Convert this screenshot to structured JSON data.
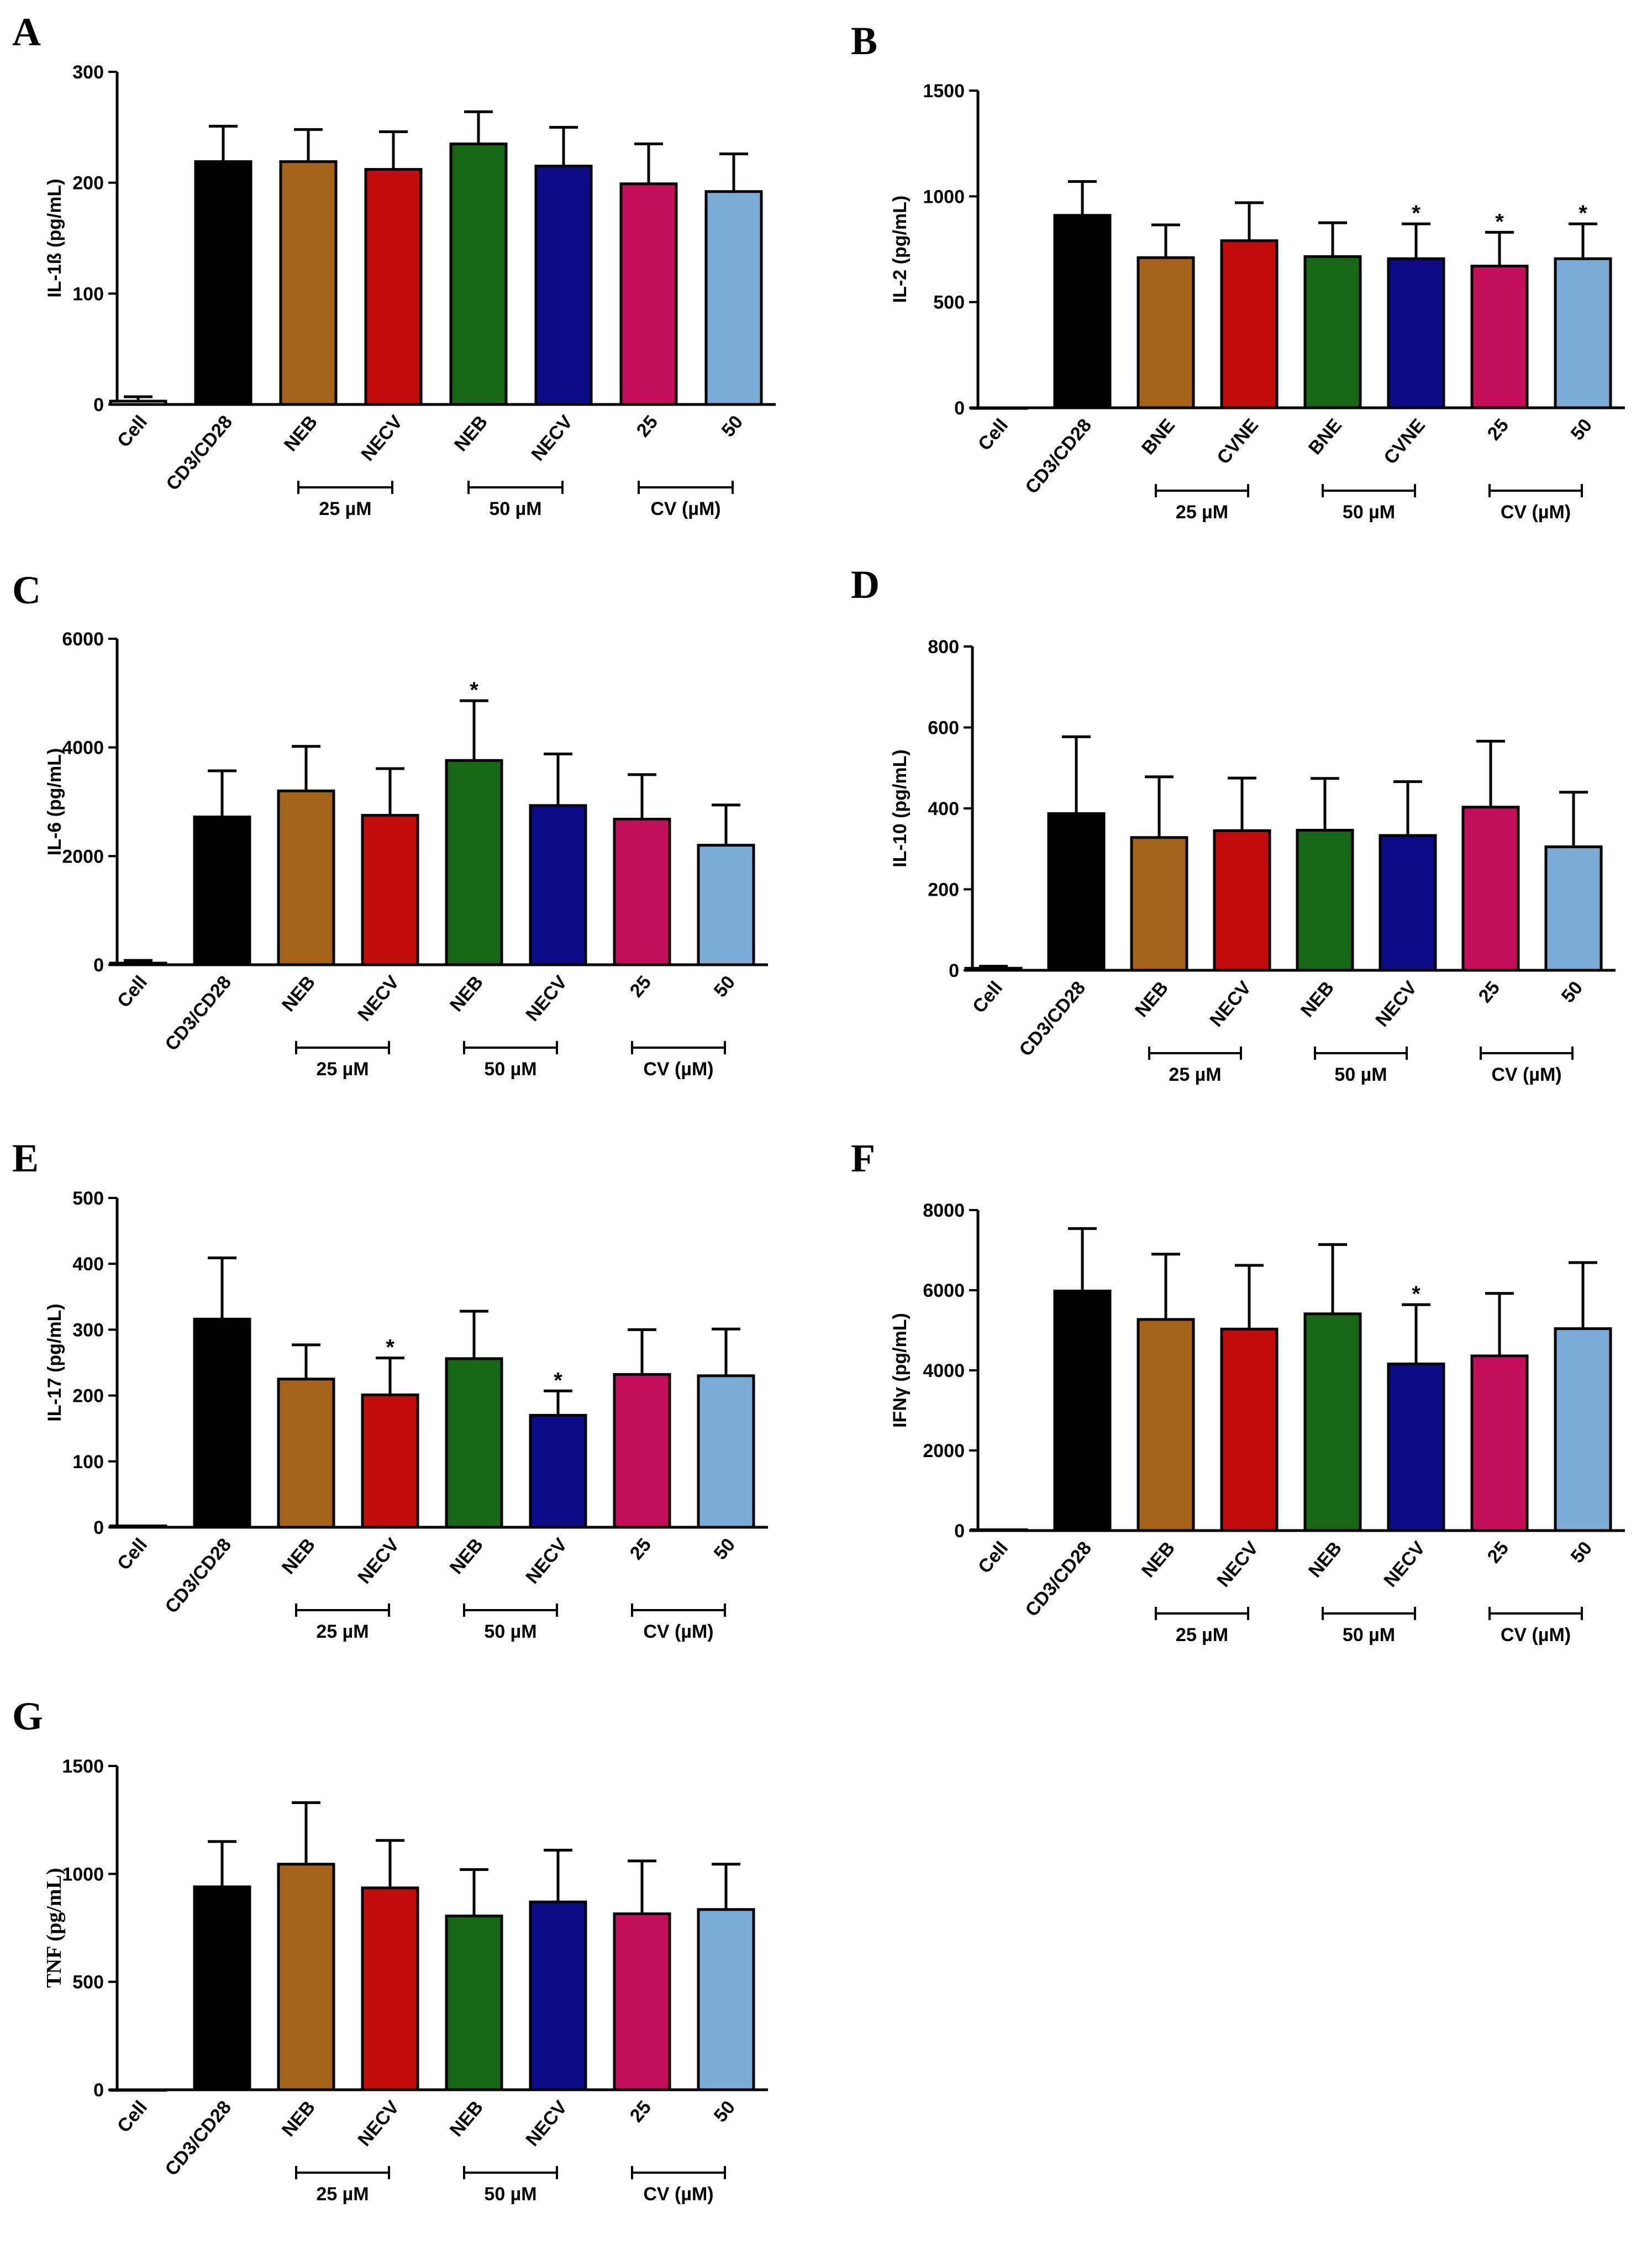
{
  "figure": {
    "colors": {
      "Cell": "#ffffff",
      "CD3/CD28": "#000000",
      "NEB25": "#a5631a",
      "NECV25": "#c20b0b",
      "NEB50": "#166616",
      "NECV50": "#0c0c88",
      "CV25": "#c4105a",
      "CV50": "#7bacd8"
    }
  },
  "chart_data": [
    {
      "panel": "A",
      "type": "bar",
      "ylabel": "IL-1ß (pg/mL)",
      "ylim": [
        0,
        300
      ],
      "yticks": [
        0,
        100,
        200,
        300
      ],
      "categories": [
        "Cell",
        "CD3/CD28",
        "NEB",
        "NECV",
        "NEB",
        "NECV",
        "25",
        "50"
      ],
      "values": [
        3,
        219,
        219,
        212,
        235,
        215,
        199,
        192
      ],
      "errors": [
        4,
        32,
        29,
        34,
        29,
        35,
        36,
        34
      ],
      "significance": [
        "",
        "",
        "",
        "",
        "",
        "",
        "",
        ""
      ],
      "groups": [
        "25 µM",
        "50 µM",
        "CV (µM)"
      ]
    },
    {
      "panel": "B",
      "type": "bar",
      "ylabel": "IL-2 (pg/mL)",
      "ylim": [
        0,
        1500
      ],
      "yticks": [
        0,
        500,
        1000,
        1500
      ],
      "categories": [
        "Cell",
        "CD3/CD28",
        "BNE",
        "CVNE",
        "BNE",
        "CVNE",
        "25",
        "50"
      ],
      "values": [
        0,
        910,
        710,
        790,
        715,
        705,
        670,
        705
      ],
      "errors": [
        0,
        160,
        155,
        180,
        160,
        165,
        160,
        165
      ],
      "significance": [
        "",
        "",
        "",
        "",
        "",
        "*",
        "*",
        "*"
      ],
      "groups": [
        "25 µM",
        "50 µM",
        "CV (µM)"
      ]
    },
    {
      "panel": "C",
      "type": "bar",
      "ylabel": "IL-6 (pg/mL)",
      "ylim": [
        0,
        6000
      ],
      "yticks": [
        0,
        2000,
        4000,
        6000
      ],
      "categories": [
        "Cell",
        "CD3/CD28",
        "NEB",
        "NECV",
        "NEB",
        "NECV",
        "25",
        "50"
      ],
      "values": [
        30,
        2720,
        3200,
        2750,
        3760,
        2930,
        2680,
        2200
      ],
      "errors": [
        50,
        850,
        820,
        860,
        1100,
        950,
        820,
        740
      ],
      "significance": [
        "",
        "",
        "",
        "",
        "*",
        "",
        "",
        ""
      ],
      "groups": [
        "25 µM",
        "50 µM",
        "CV (µM)"
      ]
    },
    {
      "panel": "D",
      "type": "bar",
      "ylabel": "IL-10 (pg/mL)",
      "ylim": [
        0,
        800
      ],
      "yticks": [
        0,
        200,
        400,
        600,
        800
      ],
      "categories": [
        "Cell",
        "CD3/CD28",
        "NEB",
        "NECV",
        "NEB",
        "NECV",
        "25",
        "50"
      ],
      "values": [
        5,
        387,
        328,
        345,
        346,
        333,
        403,
        305
      ],
      "errors": [
        5,
        190,
        150,
        130,
        128,
        133,
        163,
        135
      ],
      "significance": [
        "",
        "",
        "",
        "",
        "",
        "",
        "",
        ""
      ],
      "groups": [
        "25 µM",
        "50 µM",
        "CV (µM)"
      ]
    },
    {
      "panel": "E",
      "type": "bar",
      "ylabel": "IL-17 (pg/mL)",
      "ylim": [
        0,
        500
      ],
      "yticks": [
        0,
        100,
        200,
        300,
        400,
        500
      ],
      "categories": [
        "Cell",
        "CD3/CD28",
        "NEB",
        "NECV",
        "NEB",
        "NECV",
        "25",
        "50"
      ],
      "values": [
        2,
        316,
        225,
        201,
        256,
        170,
        232,
        230
      ],
      "errors": [
        0,
        93,
        52,
        56,
        72,
        37,
        68,
        71
      ],
      "significance": [
        "",
        "",
        "",
        "*",
        "",
        "*",
        "",
        ""
      ],
      "groups": [
        "25 µM",
        "50 µM",
        "CV (µM)"
      ]
    },
    {
      "panel": "F",
      "type": "bar",
      "ylabel": "IFNγ (pg/mL)",
      "ylim": [
        0,
        8000
      ],
      "yticks": [
        0,
        2000,
        4000,
        6000,
        8000
      ],
      "categories": [
        "Cell",
        "CD3/CD28",
        "NEB",
        "NECV",
        "NEB",
        "NECV",
        "25",
        "50"
      ],
      "values": [
        20,
        5980,
        5270,
        5030,
        5410,
        4160,
        4360,
        5040
      ],
      "errors": [
        0,
        1560,
        1630,
        1590,
        1730,
        1480,
        1560,
        1650
      ],
      "significance": [
        "",
        "",
        "",
        "",
        "",
        "*",
        "",
        ""
      ],
      "groups": [
        "25 µM",
        "50 µM",
        "CV (µM)"
      ]
    },
    {
      "panel": "G",
      "type": "bar",
      "ylabel": "TNF (pg/mL)",
      "ylim": [
        0,
        1500
      ],
      "yticks": [
        0,
        500,
        1000,
        1500
      ],
      "categories": [
        "Cell",
        "CD3/CD28",
        "NEB",
        "NECV",
        "NEB",
        "NECV",
        "25",
        "50"
      ],
      "values": [
        0,
        940,
        1045,
        935,
        805,
        870,
        815,
        835
      ],
      "errors": [
        0,
        210,
        285,
        220,
        215,
        240,
        245,
        210
      ],
      "significance": [
        "",
        "",
        "",
        "",
        "",
        "",
        "",
        ""
      ],
      "groups": [
        "25 µM",
        "50 µM",
        "CV (µM)"
      ]
    }
  ]
}
